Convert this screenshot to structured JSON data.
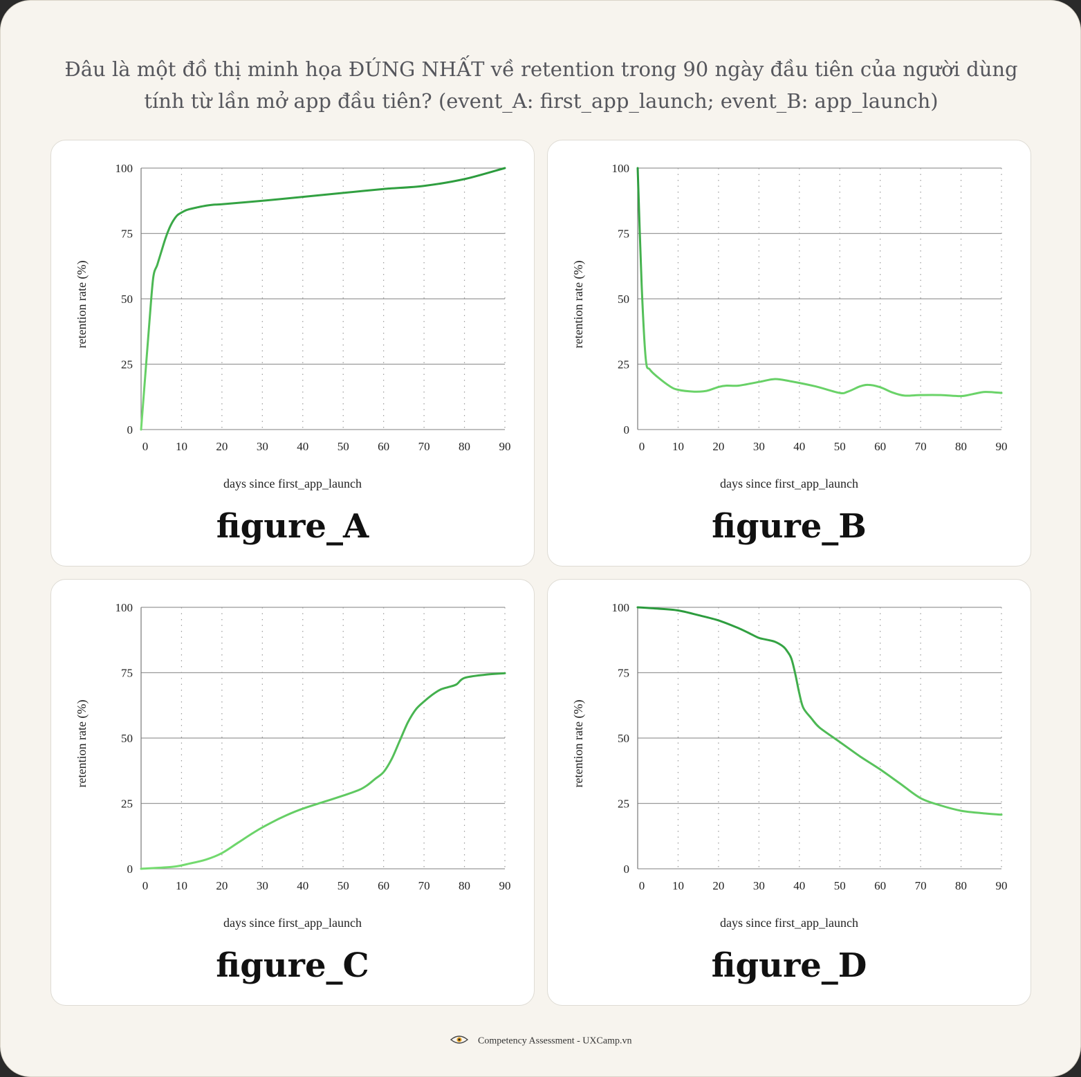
{
  "question": "Đâu là một đồ thị minh họa ĐÚNG NHẤT về retention trong 90 ngày đầu tiên của người dùng tính từ lần mở app đầu tiên? (event_A: first_app_launch; event_B: app_launch)",
  "footer": {
    "text": "Competency Assessment - UXCamp.vn",
    "logo_icon": "eye-icon"
  },
  "colors": {
    "line_start": "#75dc70",
    "line_end": "#2a9a3c",
    "grid": "#999999",
    "card": "#ffffff",
    "page": "#f7f4ee"
  },
  "chart_data": [
    {
      "type": "line",
      "label": "figure_A",
      "xlabel": "days since first_app_launch",
      "ylabel": "retention rate  (%)",
      "xlim": [
        0,
        90
      ],
      "ylim": [
        0,
        100
      ],
      "xticks": [
        0,
        10,
        20,
        30,
        40,
        50,
        60,
        70,
        80,
        90
      ],
      "yticks": [
        0,
        25,
        50,
        75,
        100
      ],
      "grid": {
        "y": "solid",
        "x": "dotted"
      },
      "x": [
        0,
        2,
        3,
        4,
        5,
        6,
        7,
        8,
        9,
        10,
        11,
        12,
        14,
        16,
        18,
        20,
        30,
        40,
        50,
        60,
        70,
        80,
        90
      ],
      "y": [
        0,
        40,
        58,
        63,
        68,
        73,
        77,
        80,
        82,
        83,
        83.8,
        84.3,
        85,
        85.6,
        86,
        86.2,
        87.5,
        89,
        90.5,
        92,
        93.2,
        95.8,
        100
      ]
    },
    {
      "type": "line",
      "label": "figure_B",
      "xlabel": "days since first_app_launch",
      "ylabel": "retention rate  (%)",
      "xlim": [
        0,
        90
      ],
      "ylim": [
        0,
        100
      ],
      "xticks": [
        0,
        10,
        20,
        30,
        40,
        50,
        60,
        70,
        80,
        90
      ],
      "yticks": [
        0,
        25,
        50,
        75,
        100
      ],
      "grid": {
        "y": "solid",
        "x": "dotted"
      },
      "x": [
        0,
        1,
        2,
        3,
        5,
        8,
        10,
        14,
        17,
        20,
        22,
        25,
        30,
        34,
        38,
        44,
        50,
        52,
        55,
        57,
        60,
        63,
        66,
        70,
        75,
        80,
        83,
        86,
        90
      ],
      "y": [
        100,
        55,
        27,
        23,
        20,
        16.5,
        15.2,
        14.5,
        14.8,
        16.3,
        16.8,
        16.8,
        18.2,
        19.3,
        18.4,
        16.5,
        14,
        14.5,
        16.5,
        17.1,
        16.2,
        14.2,
        13,
        13.2,
        13.2,
        12.8,
        13.6,
        14.4,
        14
      ]
    },
    {
      "type": "line",
      "label": "figure_C",
      "xlabel": "days since first_app_launch",
      "ylabel": "retention rate  (%)",
      "xlim": [
        0,
        90
      ],
      "ylim": [
        0,
        100
      ],
      "xticks": [
        0,
        10,
        20,
        30,
        40,
        50,
        60,
        70,
        80,
        90
      ],
      "yticks": [
        0,
        25,
        50,
        75,
        100
      ],
      "grid": {
        "y": "solid",
        "x": "dotted"
      },
      "x": [
        0,
        8,
        12,
        16,
        20,
        24,
        28,
        32,
        36,
        40,
        45,
        50,
        54,
        56,
        58,
        60,
        62,
        64,
        66,
        68,
        70,
        72,
        74,
        76,
        78,
        80,
        85,
        90
      ],
      "y": [
        0,
        0.8,
        2,
        3.5,
        6,
        10,
        14,
        17.5,
        20.5,
        23,
        25.5,
        28,
        30.2,
        32,
        34.5,
        37,
        42,
        49,
        56,
        61,
        64,
        66.5,
        68.5,
        69.5,
        70.5,
        73,
        74.2,
        74.8
      ]
    },
    {
      "type": "line",
      "label": "figure_D",
      "xlabel": "days since first_app_launch",
      "ylabel": "retention rate  (%)",
      "xlim": [
        0,
        90
      ],
      "ylim": [
        0,
        100
      ],
      "xticks": [
        0,
        10,
        20,
        30,
        40,
        50,
        60,
        70,
        80,
        90
      ],
      "yticks": [
        0,
        25,
        50,
        75,
        100
      ],
      "grid": {
        "y": "solid",
        "x": "dotted"
      },
      "x": [
        0,
        5,
        10,
        15,
        20,
        25,
        28,
        30,
        32,
        34,
        36,
        37,
        38,
        39,
        40,
        41,
        43,
        45,
        50,
        55,
        60,
        65,
        70,
        75,
        80,
        85,
        90
      ],
      "y": [
        100,
        99.5,
        98.8,
        97,
        95,
        92,
        89.8,
        88.3,
        87.6,
        86.8,
        85,
        83.2,
        80.5,
        74.5,
        67,
        61.5,
        57.5,
        54,
        48.5,
        43,
        38,
        32.5,
        27,
        24.2,
        22.2,
        21.3,
        20.7
      ]
    }
  ]
}
